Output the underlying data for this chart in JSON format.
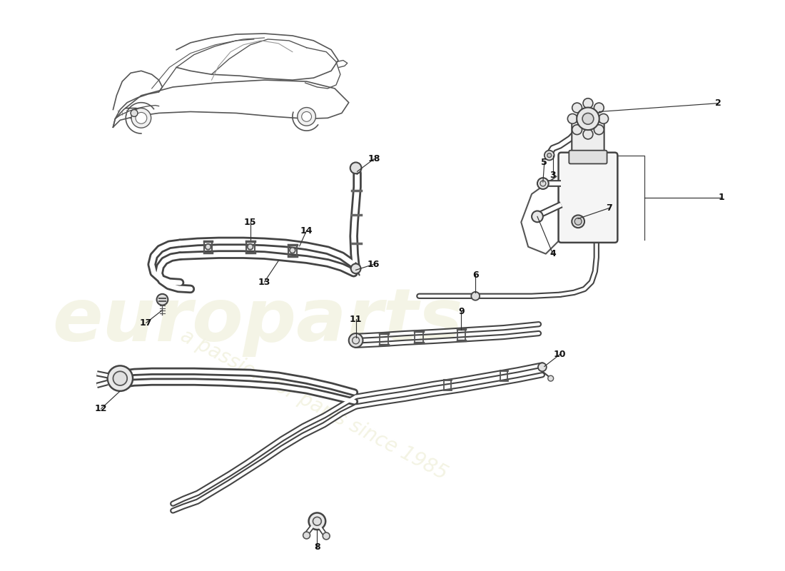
{
  "background_color": "#ffffff",
  "line_color": "#333333",
  "watermark1": "europarts",
  "watermark2": "a passion for parts since 1985",
  "fig_width": 11.0,
  "fig_height": 8.0,
  "pipe_color": "#555555",
  "pipe_lw_outer": 6.0,
  "pipe_lw_inner": 3.0,
  "hose_color": "#555555",
  "hose_lw_outer": 8.0,
  "hose_lw_inner": 4.0
}
